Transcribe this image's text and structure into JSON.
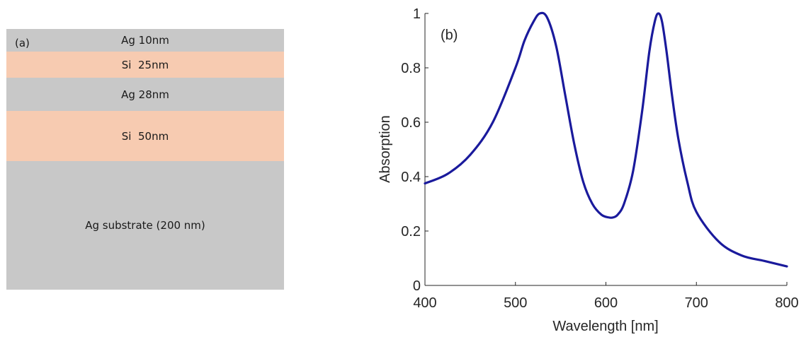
{
  "panel_a": {
    "label": "(a)",
    "layers": [
      {
        "label": "Ag 10nm",
        "material": "Ag",
        "color": "#c8c8c8",
        "thickness_nm": 10
      },
      {
        "label": "Si  25nm",
        "material": "Si",
        "color": "#f7cbb1",
        "thickness_nm": 25
      },
      {
        "label": "Ag 28nm",
        "material": "Ag",
        "color": "#c8c8c8",
        "thickness_nm": 28
      },
      {
        "label": "Si  50nm",
        "material": "Si",
        "color": "#f7cbb1",
        "thickness_nm": 50
      },
      {
        "label": "Ag substrate (200 nm)",
        "material": "Ag",
        "color": "#c8c8c8",
        "thickness_nm": 200
      }
    ]
  },
  "chart_data": {
    "type": "line",
    "panel_label": "(b)",
    "xlabel": "Wavelength [nm]",
    "ylabel": "Absorption",
    "xlim": [
      400,
      800
    ],
    "ylim": [
      0,
      1
    ],
    "xticks": [
      400,
      500,
      600,
      700,
      800
    ],
    "yticks": [
      0,
      0.2,
      0.4,
      0.6,
      0.8,
      1
    ],
    "ytick_labels": [
      "0",
      "0.2",
      "0.4",
      "0.6",
      "0.8",
      "1"
    ],
    "grid": false,
    "line_color": "#1a1a9c",
    "series": [
      {
        "x": [
          400,
          425,
          450,
          475,
          500,
          510,
          520,
          527,
          535,
          545,
          555,
          565,
          575,
          585,
          595,
          603,
          608,
          613,
          620,
          630,
          640,
          648,
          654,
          658,
          662,
          667,
          673,
          680,
          690,
          700,
          725,
          750,
          775,
          800
        ],
        "values": [
          0.375,
          0.41,
          0.48,
          0.6,
          0.8,
          0.9,
          0.97,
          1.0,
          0.985,
          0.88,
          0.7,
          0.52,
          0.38,
          0.3,
          0.26,
          0.25,
          0.25,
          0.26,
          0.3,
          0.42,
          0.64,
          0.86,
          0.97,
          1.0,
          0.97,
          0.86,
          0.7,
          0.54,
          0.38,
          0.27,
          0.16,
          0.11,
          0.09,
          0.07
        ]
      }
    ]
  }
}
